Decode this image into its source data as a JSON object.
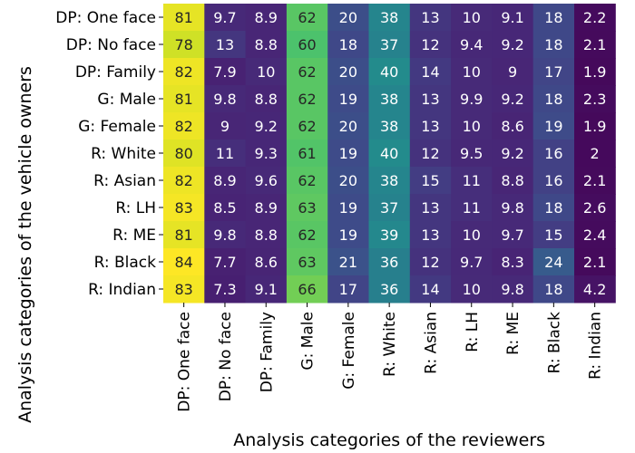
{
  "chart_data": {
    "type": "heatmap",
    "xlabel": "Analysis categories of the reviewers",
    "ylabel": "Analysis categories of the vehicle owners",
    "x_categories": [
      "DP: One face",
      "DP: No face",
      "DP: Family",
      "G: Male",
      "G: Female",
      "R: White",
      "R: Asian",
      "R: LH",
      "R: ME",
      "R: Black",
      "R: Indian"
    ],
    "y_categories": [
      "DP: One face",
      "DP: No face",
      "DP: Family",
      "G: Male",
      "G: Female",
      "R: White",
      "R: Asian",
      "R: LH",
      "R: ME",
      "R: Black",
      "R: Indian"
    ],
    "values": [
      [
        81,
        9.7,
        8.9,
        62,
        20,
        38,
        13,
        10,
        9.1,
        18,
        2.2
      ],
      [
        78,
        13,
        8.8,
        60,
        18,
        37,
        12,
        9.4,
        9.2,
        18,
        2.1
      ],
      [
        82,
        7.9,
        10,
        62,
        20,
        40,
        14,
        10,
        9,
        17,
        1.9
      ],
      [
        81,
        9.8,
        8.8,
        62,
        19,
        38,
        13,
        9.9,
        9.2,
        18,
        2.3
      ],
      [
        82,
        9,
        9.2,
        62,
        20,
        38,
        13,
        10,
        8.6,
        19,
        1.9
      ],
      [
        80,
        11,
        9.3,
        61,
        19,
        40,
        12,
        9.5,
        9.2,
        16,
        2
      ],
      [
        82,
        8.9,
        9.6,
        62,
        20,
        38,
        15,
        11,
        8.8,
        16,
        2.1
      ],
      [
        83,
        8.5,
        8.9,
        63,
        19,
        37,
        13,
        11,
        9.8,
        18,
        2.6
      ],
      [
        81,
        9.8,
        8.8,
        62,
        19,
        39,
        13,
        10,
        9.7,
        15,
        2.4
      ],
      [
        84,
        7.7,
        8.6,
        63,
        21,
        36,
        12,
        9.7,
        8.3,
        24,
        2.1
      ],
      [
        83,
        7.3,
        9.1,
        66,
        17,
        36,
        14,
        10,
        9.8,
        18,
        4.2
      ]
    ],
    "colormap": "viridis",
    "value_range": [
      0,
      84
    ]
  }
}
